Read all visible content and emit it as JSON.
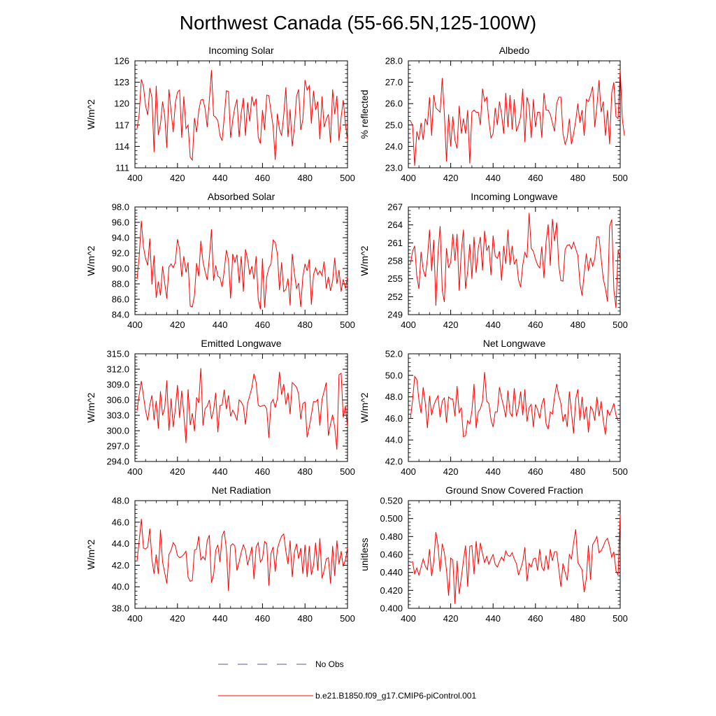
{
  "title": "Northwest Canada (55-66.5N,125-100W)",
  "colors": {
    "series": "#ff0000",
    "obs": "#5555aa",
    "axis": "#000000"
  },
  "legend": [
    {
      "label": "No Obs",
      "style": "dashed",
      "color": "#5555aa"
    },
    {
      "label": "b.e21.B1850.f09_g17.CMIP6-piControl.001",
      "style": "solid",
      "color": "#ff0000"
    }
  ],
  "chart_data": [
    {
      "type": "line",
      "title": "Incoming Solar",
      "ylabel": "W/m^2",
      "xlim": [
        400,
        500
      ],
      "xticks": [
        400,
        420,
        440,
        460,
        480,
        500
      ],
      "ylim": [
        111,
        126
      ],
      "yticks": [
        "111",
        "114",
        "117",
        "120",
        "123",
        "126"
      ],
      "x_start": 401,
      "values": [
        116.5,
        118.5,
        123.4,
        122.4,
        119.7,
        118.4,
        122.2,
        120.8,
        113.2,
        122.5,
        115.6,
        117.1,
        120.3,
        118.3,
        113.8,
        122.0,
        118.9,
        116.0,
        120.1,
        121.6,
        121.9,
        115.2,
        121.0,
        116.5,
        117.0,
        112.5,
        112.1,
        118.0,
        116.0,
        119.0,
        120.5,
        120.6,
        119.3,
        116.7,
        120.5,
        124.7,
        118.3,
        118.1,
        117.6,
        115.5,
        114.8,
        118.1,
        121.8,
        121.7,
        115.2,
        117.7,
        119.5,
        120.6,
        115.3,
        118.7,
        120.8,
        115.5,
        120.2,
        117.5,
        121.0,
        119.7,
        120.7,
        115.3,
        114.4,
        119.1,
        116.3,
        121.2,
        121.1,
        118.9,
        116.8,
        112.1,
        118.6,
        116.4,
        115.5,
        118.4,
        122.3,
        115.3,
        119.2,
        114.0,
        116.7,
        121.0,
        122.0,
        116.3,
        117.8,
        123.3,
        121.9,
        122.5,
        117.2,
        121.8,
        119.1,
        120.3,
        115.0,
        121.0,
        116.7,
        117.8,
        118.5,
        114.5,
        122.0,
        118.5,
        121.1,
        114.8,
        118.1,
        120.5,
        117.2,
        114.8
      ]
    },
    {
      "type": "line",
      "title": "Albedo",
      "ylabel": "% reflected",
      "xlim": [
        400,
        500
      ],
      "xticks": [
        400,
        420,
        440,
        460,
        480,
        500
      ],
      "ylim": [
        23.0,
        28.0
      ],
      "yticks": [
        "23.0",
        "24.0",
        "25.0",
        "26.0",
        "27.0",
        "28.0"
      ],
      "x_start": 401,
      "values": [
        25.2,
        25.0,
        23.1,
        24.7,
        24.3,
        25.1,
        24.3,
        25.3,
        25.0,
        26.3,
        24.5,
        26.4,
        25.8,
        25.7,
        25.6,
        27.2,
        25.5,
        23.3,
        25.5,
        24.0,
        25.4,
        24.3,
        23.9,
        25.9,
        24.6,
        25.3,
        24.6,
        25.7,
        23.2,
        25.6,
        25.7,
        25.6,
        25.6,
        25.0,
        26.7,
        26.1,
        26.3,
        25.2,
        24.4,
        24.6,
        25.8,
        25.0,
        26.1,
        25.5,
        24.6,
        26.5,
        24.9,
        26.4,
        24.8,
        26.2,
        24.7,
        25.0,
        25.4,
        26.7,
        24.2,
        26.3,
        25.9,
        24.4,
        26.2,
        24.9,
        25.6,
        25.6,
        24.4,
        26.5,
        25.7,
        25.7,
        25.5,
        25.1,
        24.7,
        26.0,
        26.3,
        26.3,
        24.6,
        24.1,
        24.4,
        25.3,
        24.1,
        24.6,
        25.2,
        26.0,
        25.1,
        25.7,
        24.5,
        26.2,
        26.1,
        26.4,
        26.8,
        24.9,
        25.9,
        27.1,
        25.6,
        26.1,
        24.5,
        25.7,
        24.1,
        26.5,
        27.0,
        25.4,
        25.3,
        27.6,
        25.3,
        24.5
      ]
    },
    {
      "type": "line",
      "title": "Absorbed Solar",
      "ylabel": "W/m^2",
      "xlim": [
        400,
        500
      ],
      "xticks": [
        400,
        420,
        440,
        460,
        480,
        500
      ],
      "ylim": [
        84.0,
        98.0
      ],
      "yticks": [
        "84.0",
        "86.0",
        "88.0",
        "90.0",
        "92.0",
        "94.0",
        "96.0",
        "98.0"
      ],
      "x_start": 401,
      "values": [
        88.6,
        91.6,
        96.2,
        92.8,
        91.3,
        90.4,
        93.9,
        87.9,
        91.7,
        86.2,
        88.3,
        86.5,
        90.3,
        88.1,
        86.1,
        90.2,
        90.6,
        90.1,
        90.8,
        93.8,
        92.5,
        88.9,
        91.6,
        89.5,
        90.8,
        85.1,
        85.0,
        86.5,
        90.7,
        89.0,
        93.6,
        90.9,
        89.6,
        88.5,
        91.4,
        95.1,
        88.4,
        90.4,
        89.0,
        88.8,
        87.6,
        89.7,
        92.4,
        91.1,
        86.1,
        91.9,
        90.8,
        91.8,
        88.1,
        91.6,
        87.0,
        92.5,
        91.2,
        89.2,
        90.3,
        88.6,
        91.6,
        86.0,
        84.7,
        91.3,
        84.9,
        88.9,
        90.1,
        90.6,
        93.7,
        93.4,
        91.9,
        87.2,
        90.8,
        87.0,
        87.3,
        88.7,
        85.2,
        91.9,
        89.4,
        87.4,
        88.1,
        85.0,
        89.0,
        90.6,
        89.7,
        91.2,
        85.3,
        89.2,
        90.1,
        89.2,
        89.7,
        89.1,
        90.9,
        87.4,
        88.9,
        87.1,
        88.4,
        91.4,
        88.0,
        89.8,
        87.0,
        88.6,
        87.4,
        88.9
      ]
    },
    {
      "type": "line",
      "title": "Incoming Longwave",
      "ylabel": "W/m^2",
      "xlim": [
        400,
        500
      ],
      "xticks": [
        400,
        420,
        440,
        460,
        480,
        500
      ],
      "ylim": [
        249,
        267
      ],
      "yticks": [
        "249",
        "252",
        "255",
        "258",
        "261",
        "264",
        "267"
      ],
      "x_start": 401,
      "values": [
        257.5,
        259.6,
        260.5,
        255.4,
        253.3,
        259.5,
        256.5,
        255.3,
        258.4,
        263.2,
        256.3,
        261.5,
        250.5,
        259.3,
        263.8,
        253.1,
        251.1,
        260.1,
        256.8,
        257.8,
        262.5,
        258.0,
        262.5,
        253.0,
        259.5,
        263.2,
        253.3,
        256.3,
        260.8,
        255.0,
        262.0,
        256.0,
        260.1,
        262.0,
        256.4,
        263.0,
        259.7,
        260.6,
        255.6,
        262.2,
        258.8,
        258.4,
        259.6,
        254.7,
        260.5,
        257.5,
        263.2,
        257.3,
        260.5,
        257.4,
        258.3,
        254.8,
        253.6,
        257.3,
        259.4,
        258.5,
        266.0,
        260.1,
        259.6,
        258.3,
        257.3,
        256.8,
        260.4,
        255.1,
        261.1,
        264.1,
        257.2,
        265.0,
        261.3,
        264.4,
        257.2,
        254.7,
        254.6,
        259.9,
        260.6,
        260.7,
        260.0,
        261.1,
        260.0,
        258.9,
        254.2,
        252.2,
        255.9,
        259.2,
        256.3,
        258.5,
        257.1,
        258.4,
        262.0,
        262.0,
        258.4,
        255.0,
        253.4,
        251.2,
        263.8,
        264.9,
        253.2,
        250.1,
        259.8,
        258.2
      ]
    },
    {
      "type": "line",
      "title": "Emitted Longwave",
      "ylabel": "W/m^2",
      "xlim": [
        400,
        500
      ],
      "xticks": [
        400,
        420,
        440,
        460,
        480,
        500
      ],
      "ylim": [
        294.0,
        315.0
      ],
      "yticks": [
        "294.0",
        "297.0",
        "300.0",
        "303.0",
        "306.0",
        "309.0",
        "312.0",
        "315.0"
      ],
      "x_start": 401,
      "values": [
        303.9,
        307.0,
        309.7,
        306.8,
        303.9,
        302.0,
        305.0,
        306.9,
        302.1,
        305.8,
        300.4,
        307.7,
        303.0,
        304.4,
        309.8,
        300.0,
        306.3,
        300.7,
        304.3,
        308.9,
        302.5,
        307.8,
        303.2,
        297.6,
        308.1,
        301.1,
        303.4,
        299.9,
        306.5,
        305.4,
        312.2,
        301.0,
        304.3,
        304.8,
        306.0,
        302.3,
        304.0,
        307.4,
        299.7,
        304.9,
        305.0,
        308.0,
        304.2,
        306.9,
        302.8,
        304.0,
        303.2,
        302.0,
        306.0,
        305.6,
        304.8,
        301.2,
        305.4,
        306.8,
        308.4,
        311.1,
        309.4,
        305.0,
        304.7,
        304.9,
        305.0,
        304.2,
        298.6,
        305.4,
        306.1,
        304.5,
        306.3,
        311.5,
        307.0,
        309.1,
        305.1,
        307.4,
        303.2,
        309.4,
        309.0,
        308.5,
        307.2,
        302.2,
        305.3,
        305.6,
        298.7,
        300.7,
        303.1,
        305.7,
        305.6,
        306.1,
        301.0,
        306.1,
        307.7,
        309.4,
        299.0,
        301.3,
        303.1,
        300.6,
        296.3,
        310.9,
        311.2,
        302.6,
        304.8,
        300.8
      ]
    },
    {
      "type": "line",
      "title": "Net Longwave",
      "ylabel": "W/m^2",
      "xlim": [
        400,
        500
      ],
      "xticks": [
        400,
        420,
        440,
        460,
        480,
        500
      ],
      "ylim": [
        42.0,
        52.0
      ],
      "yticks": [
        "42.0",
        "44.0",
        "46.0",
        "48.0",
        "50.0",
        "52.0"
      ],
      "x_start": 401,
      "values": [
        46.0,
        47.7,
        49.9,
        49.6,
        47.7,
        46.5,
        48.9,
        47.4,
        45.1,
        48.1,
        46.3,
        47.2,
        47.7,
        48.1,
        46.1,
        47.6,
        47.9,
        45.6,
        48.0,
        47.8,
        47.8,
        46.2,
        49.0,
        46.5,
        47.0,
        44.3,
        44.4,
        45.8,
        45.5,
        46.7,
        49.2,
        45.1,
        46.6,
        46.9,
        47.6,
        50.3,
        47.6,
        47.4,
        45.9,
        45.2,
        46.6,
        46.6,
        48.9,
        47.9,
        47.1,
        46.1,
        48.6,
        46.5,
        46.2,
        48.8,
        46.2,
        47.0,
        48.5,
        46.3,
        48.7,
        45.7,
        47.0,
        47.3,
        45.2,
        47.3,
        46.8,
        46.0,
        47.3,
        47.9,
        45.5,
        45.0,
        46.6,
        46.4,
        48.0,
        49.2,
        48.1,
        47.4,
        45.7,
        46.4,
        45.2,
        48.5,
        46.5,
        44.6,
        47.8,
        48.7,
        45.8,
        48.0,
        45.9,
        47.1,
        44.7,
        47.1,
        46.8,
        45.8,
        48.0,
        46.2,
        47.6,
        45.8,
        44.5,
        46.8,
        46.3,
        46.8,
        47.4,
        46.3,
        45.8,
        45.8
      ]
    },
    {
      "type": "line",
      "title": "Net Radiation",
      "ylabel": "W/m^2",
      "xlim": [
        400,
        500
      ],
      "xticks": [
        400,
        420,
        440,
        460,
        480,
        500
      ],
      "ylim": [
        38.0,
        48.0
      ],
      "yticks": [
        "38.0",
        "40.0",
        "42.0",
        "44.0",
        "46.0",
        "48.0"
      ],
      "x_start": 401,
      "values": [
        42.4,
        44.3,
        46.3,
        43.6,
        43.5,
        43.7,
        45.4,
        42.5,
        41.2,
        43.0,
        41.2,
        45.3,
        42.3,
        41.3,
        40.3,
        43.0,
        43.4,
        44.1,
        43.8,
        42.9,
        42.7,
        42.8,
        43.0,
        43.3,
        40.9,
        40.5,
        40.6,
        43.4,
        43.5,
        44.7,
        42.5,
        42.8,
        42.5,
        44.3,
        44.8,
        40.4,
        41.1,
        43.4,
        43.9,
        42.3,
        44.7,
        45.2,
        43.5,
        39.6,
        43.8,
        44.0,
        43.8,
        41.5,
        42.3,
        43.2,
        43.9,
        43.4,
        42.0,
        42.8,
        43.7,
        40.7,
        43.7,
        44.1,
        42.3,
        42.6,
        44.2,
        44.0,
        40.1,
        43.1,
        43.7,
        41.4,
        43.5,
        44.2,
        44.7,
        44.9,
        43.3,
        42.1,
        44.3,
        40.9,
        43.2,
        44.0,
        42.6,
        43.6,
        41.2,
        43.9,
        40.9,
        43.8,
        41.1,
        42.0,
        44.1,
        41.5,
        44.5,
        40.8,
        41.5,
        42.6,
        42.7,
        40.3,
        43.8,
        41.0,
        44.3,
        42.1,
        43.3,
        41.9,
        42.5,
        43.6
      ]
    },
    {
      "type": "line",
      "title": "Ground Snow Covered Fraction",
      "ylabel": "unitless",
      "xlim": [
        400,
        500
      ],
      "xticks": [
        400,
        420,
        440,
        460,
        480,
        500
      ],
      "ylim": [
        0.4,
        0.52
      ],
      "yticks": [
        "0.400",
        "0.420",
        "0.440",
        "0.460",
        "0.480",
        "0.500",
        "0.520"
      ],
      "x_start": 401,
      "values": [
        0.451,
        0.452,
        0.438,
        0.445,
        0.437,
        0.446,
        0.455,
        0.447,
        0.443,
        0.466,
        0.436,
        0.452,
        0.485,
        0.47,
        0.441,
        0.472,
        0.462,
        0.443,
        0.414,
        0.456,
        0.454,
        0.405,
        0.453,
        0.416,
        0.434,
        0.453,
        0.47,
        0.424,
        0.469,
        0.47,
        0.438,
        0.475,
        0.449,
        0.473,
        0.461,
        0.451,
        0.458,
        0.449,
        0.455,
        0.46,
        0.449,
        0.446,
        0.452,
        0.457,
        0.453,
        0.464,
        0.459,
        0.458,
        0.462,
        0.455,
        0.45,
        0.437,
        0.444,
        0.452,
        0.468,
        0.43,
        0.45,
        0.446,
        0.455,
        0.456,
        0.442,
        0.466,
        0.446,
        0.442,
        0.459,
        0.443,
        0.466,
        0.453,
        0.463,
        0.463,
        0.444,
        0.424,
        0.45,
        0.44,
        0.431,
        0.46,
        0.455,
        0.473,
        0.488,
        0.451,
        0.447,
        0.443,
        0.418,
        0.433,
        0.47,
        0.432,
        0.471,
        0.475,
        0.48,
        0.462,
        0.464,
        0.469,
        0.475,
        0.478,
        0.469,
        0.457,
        0.463,
        0.442,
        0.437,
        0.505
      ]
    }
  ]
}
